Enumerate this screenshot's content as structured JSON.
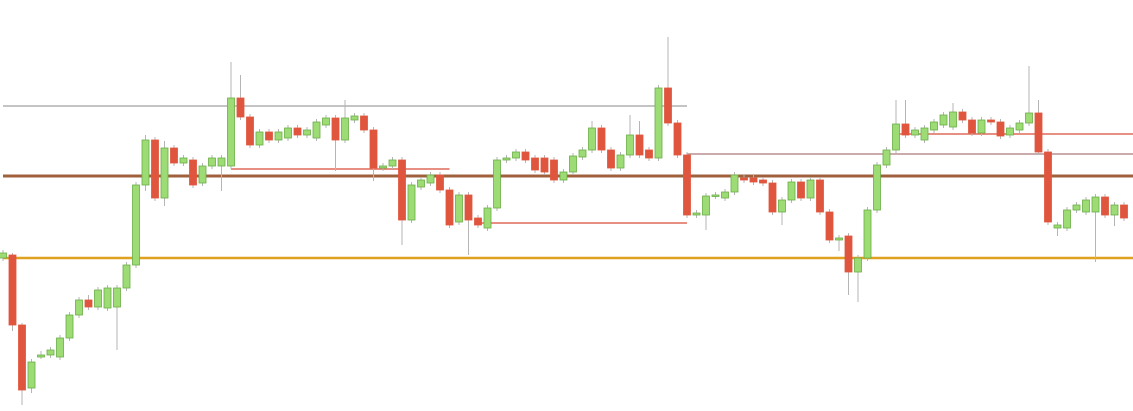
{
  "chart_data": {
    "type": "candlestick",
    "ylim": [
      0,
      411
    ],
    "up_color": "#9ddc74",
    "up_edge": "#6aae45",
    "down_color": "#e0553d",
    "wick_color": "#b5b5b5",
    "open": [
      153,
      156,
      86,
      23,
      54,
      56,
      54,
      73,
      96,
      111,
      104,
      103,
      104,
      123,
      146,
      226,
      271,
      213,
      263,
      248,
      251,
      228,
      245,
      245,
      245,
      313,
      294,
      266,
      279,
      271,
      273,
      283,
      276,
      273,
      286,
      293,
      271,
      291,
      295,
      281,
      243,
      245,
      251,
      191,
      224,
      228,
      236,
      221,
      189,
      216,
      193,
      183,
      203,
      251,
      253,
      259,
      253,
      253,
      251,
      231,
      239,
      254,
      261,
      283,
      261,
      243,
      256,
      276,
      261,
      253,
      323,
      288,
      256,
      196,
      196,
      215,
      213,
      219,
      233,
      233,
      231,
      228,
      199,
      211,
      229,
      213,
      231,
      199,
      171,
      175,
      139,
      153,
      201,
      246,
      261,
      287,
      276,
      271,
      281,
      286,
      284,
      299,
      291,
      278,
      291,
      289,
      276,
      281,
      288,
      298,
      259,
      183,
      183,
      201,
      199,
      199,
      214,
      196,
      206
    ],
    "high": [
      161,
      158,
      88,
      52,
      60,
      64,
      76,
      99,
      114,
      116,
      124,
      126,
      126,
      149,
      229,
      276,
      274,
      270,
      266,
      256,
      254,
      248,
      256,
      256,
      349,
      336,
      297,
      282,
      282,
      282,
      286,
      286,
      284,
      292,
      296,
      296,
      311,
      298,
      298,
      284,
      248,
      254,
      254,
      229,
      234,
      239,
      239,
      224,
      219,
      219,
      196,
      206,
      254,
      256,
      262,
      262,
      256,
      256,
      254,
      242,
      258,
      264,
      290,
      286,
      264,
      259,
      296,
      290,
      264,
      326,
      374,
      291,
      259,
      201,
      218,
      219,
      222,
      239,
      236,
      236,
      234,
      231,
      214,
      232,
      232,
      234,
      234,
      202,
      176,
      178,
      156,
      204,
      249,
      264,
      311,
      311,
      284,
      286,
      292,
      299,
      308,
      302,
      294,
      294,
      294,
      292,
      286,
      291,
      345,
      311,
      262,
      189,
      204,
      209,
      214,
      217,
      217,
      209,
      209
    ],
    "low": [
      150,
      80,
      6,
      18,
      52,
      53,
      51,
      70,
      93,
      101,
      101,
      100,
      61,
      120,
      143,
      220,
      210,
      205,
      245,
      245,
      223,
      225,
      242,
      220,
      242,
      291,
      263,
      263,
      268,
      268,
      270,
      273,
      273,
      270,
      283,
      240,
      268,
      288,
      278,
      230,
      240,
      242,
      166,
      188,
      221,
      225,
      218,
      183,
      186,
      156,
      183,
      180,
      200,
      248,
      250,
      248,
      238,
      236,
      228,
      228,
      236,
      251,
      258,
      258,
      240,
      240,
      253,
      253,
      250,
      250,
      285,
      253,
      193,
      193,
      181,
      212,
      210,
      216,
      228,
      226,
      225,
      196,
      186,
      208,
      210,
      210,
      196,
      168,
      160,
      116,
      109,
      150,
      198,
      243,
      258,
      273,
      273,
      268,
      278,
      283,
      281,
      288,
      275,
      275,
      286,
      272,
      273,
      278,
      285,
      256,
      186,
      175,
      180,
      198,
      196,
      149,
      193,
      185,
      190
    ],
    "close": [
      158,
      86,
      21,
      49,
      56,
      61,
      73,
      96,
      111,
      104,
      121,
      123,
      123,
      146,
      226,
      271,
      213,
      263,
      248,
      253,
      226,
      245,
      253,
      253,
      313,
      294,
      266,
      279,
      271,
      279,
      283,
      276,
      281,
      289,
      293,
      271,
      293,
      295,
      281,
      243,
      245,
      251,
      191,
      226,
      231,
      236,
      221,
      186,
      216,
      191,
      186,
      203,
      251,
      253,
      259,
      251,
      241,
      239,
      231,
      239,
      255,
      261,
      283,
      261,
      243,
      256,
      276,
      256,
      253,
      323,
      288,
      256,
      196,
      198,
      215,
      216,
      219,
      236,
      231,
      229,
      228,
      199,
      211,
      229,
      213,
      231,
      199,
      171,
      173,
      139,
      153,
      201,
      246,
      261,
      287,
      276,
      281,
      283,
      289,
      296,
      299,
      291,
      278,
      291,
      289,
      275,
      283,
      288,
      298,
      259,
      189,
      186,
      201,
      206,
      211,
      214,
      196,
      206,
      193
    ],
    "levels": [
      {
        "value": 305,
        "from": 0,
        "to": 72,
        "color": "#b0b0b0",
        "width": 1.5
      },
      {
        "value": 235,
        "from": 0,
        "to": 118,
        "color": "#a0603c",
        "width": 3
      },
      {
        "value": 153,
        "from": 0,
        "to": 118,
        "color": "#e0a020",
        "width": 2.5
      },
      {
        "value": 242,
        "from": 24,
        "to": 47,
        "color": "#e06a5a",
        "width": 1.5
      },
      {
        "value": 188,
        "from": 50,
        "to": 72,
        "color": "#e06a5a",
        "width": 1.5
      },
      {
        "value": 257,
        "from": 72,
        "to": 118,
        "color": "#b89090",
        "width": 1.5
      },
      {
        "value": 277,
        "from": 94,
        "to": 118,
        "color": "#e06a5a",
        "width": 1.5
      }
    ]
  }
}
